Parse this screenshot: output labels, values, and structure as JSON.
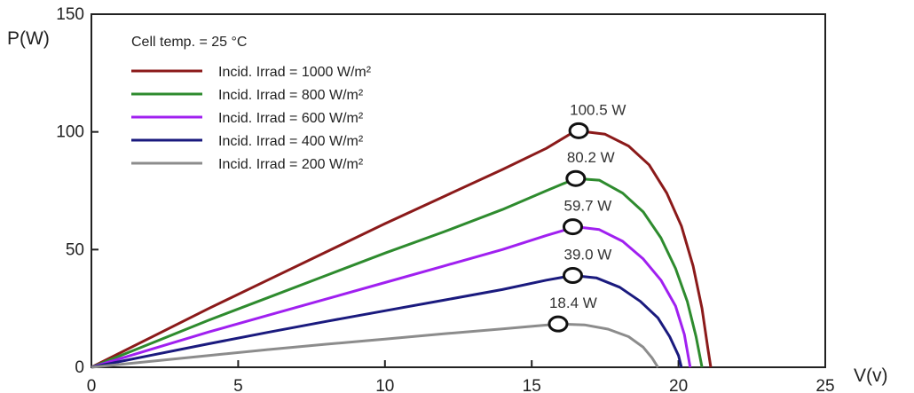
{
  "chart_data": {
    "type": "line",
    "title": "",
    "xlabel": "V(v)",
    "ylabel": "P(W)",
    "xlim": [
      0,
      25
    ],
    "ylim": [
      0,
      150
    ],
    "x_ticks": [
      "0",
      "5",
      "10",
      "15",
      "20",
      "25"
    ],
    "y_ticks": [
      "0",
      "50",
      "100",
      "150"
    ],
    "grid": false,
    "legend_placement": "top-left",
    "legend_header": "Cell temp. =   25 °C",
    "series": [
      {
        "name": "Incid. Irrad = 1000 W/m²",
        "color": "#8b1a1a",
        "points": [
          [
            0,
            0
          ],
          [
            2,
            12.5
          ],
          [
            4,
            25
          ],
          [
            6,
            37
          ],
          [
            8,
            49
          ],
          [
            10,
            61
          ],
          [
            12,
            72.5
          ],
          [
            14,
            84
          ],
          [
            15.5,
            93
          ],
          [
            16.5,
            100.5
          ],
          [
            17.5,
            99
          ],
          [
            18.3,
            94
          ],
          [
            19,
            86
          ],
          [
            19.6,
            74
          ],
          [
            20.1,
            60
          ],
          [
            20.5,
            43
          ],
          [
            20.8,
            25
          ],
          [
            21.0,
            8
          ],
          [
            21.1,
            0
          ]
        ],
        "mpp": {
          "x": 16.6,
          "y": 100.5,
          "label": "100.5 W"
        }
      },
      {
        "name": "Incid. Irrad =  800 W/m²",
        "color": "#2e8b2e",
        "points": [
          [
            0,
            0
          ],
          [
            2,
            10
          ],
          [
            4,
            20
          ],
          [
            6,
            29.5
          ],
          [
            8,
            39
          ],
          [
            10,
            48.5
          ],
          [
            12,
            57.5
          ],
          [
            14,
            67
          ],
          [
            15.5,
            75
          ],
          [
            16.5,
            80.2
          ],
          [
            17.3,
            79.5
          ],
          [
            18.1,
            74
          ],
          [
            18.8,
            66
          ],
          [
            19.4,
            55
          ],
          [
            19.9,
            42
          ],
          [
            20.3,
            28
          ],
          [
            20.6,
            13
          ],
          [
            20.8,
            0
          ]
        ],
        "mpp": {
          "x": 16.5,
          "y": 80.2,
          "label": "80.2 W"
        }
      },
      {
        "name": "Incid. Irrad =  600 W/m²",
        "color": "#a020f0",
        "points": [
          [
            0,
            0
          ],
          [
            2,
            7.5
          ],
          [
            4,
            15
          ],
          [
            6,
            22
          ],
          [
            8,
            29
          ],
          [
            10,
            36
          ],
          [
            12,
            43
          ],
          [
            14,
            50
          ],
          [
            15.5,
            56
          ],
          [
            16.5,
            59.7
          ],
          [
            17.3,
            58.5
          ],
          [
            18.1,
            53.5
          ],
          [
            18.8,
            46
          ],
          [
            19.4,
            37
          ],
          [
            19.9,
            26
          ],
          [
            20.2,
            14
          ],
          [
            20.4,
            0
          ]
        ],
        "mpp": {
          "x": 16.4,
          "y": 59.7,
          "label": "59.7 W"
        }
      },
      {
        "name": "Incid. Irrad =  400 W/m²",
        "color": "#1a1a7e",
        "points": [
          [
            0,
            0
          ],
          [
            2,
            5
          ],
          [
            4,
            10
          ],
          [
            6,
            14.8
          ],
          [
            8,
            19.5
          ],
          [
            10,
            24
          ],
          [
            12,
            28.5
          ],
          [
            14,
            33
          ],
          [
            15.5,
            37
          ],
          [
            16.4,
            39.0
          ],
          [
            17.2,
            38
          ],
          [
            18,
            34
          ],
          [
            18.7,
            28
          ],
          [
            19.3,
            21
          ],
          [
            19.7,
            13
          ],
          [
            20,
            5
          ],
          [
            20.1,
            0
          ]
        ],
        "mpp": {
          "x": 16.4,
          "y": 39.0,
          "label": "39.0 W"
        }
      },
      {
        "name": "Incid. Irrad =  200 W/m²",
        "color": "#8c8c8c",
        "points": [
          [
            0,
            0
          ],
          [
            2,
            2.5
          ],
          [
            4,
            5
          ],
          [
            6,
            7.5
          ],
          [
            8,
            9.8
          ],
          [
            10,
            12
          ],
          [
            12,
            14.2
          ],
          [
            14,
            16.3
          ],
          [
            15.2,
            17.6
          ],
          [
            15.9,
            18.4
          ],
          [
            16.8,
            18
          ],
          [
            17.6,
            16.2
          ],
          [
            18.3,
            13
          ],
          [
            18.8,
            8.5
          ],
          [
            19.1,
            4
          ],
          [
            19.3,
            0
          ]
        ],
        "mpp": {
          "x": 15.9,
          "y": 18.4,
          "label": "18.4 W"
        }
      }
    ]
  }
}
